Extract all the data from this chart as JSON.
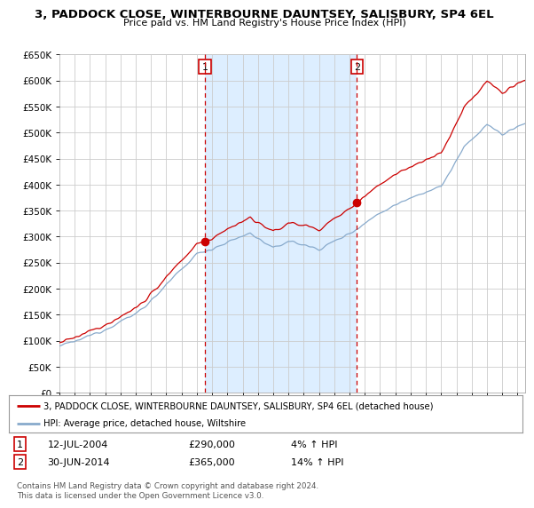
{
  "title": "3, PADDOCK CLOSE, WINTERBOURNE DAUNTSEY, SALISBURY, SP4 6EL",
  "subtitle": "Price paid vs. HM Land Registry's House Price Index (HPI)",
  "ylim": [
    0,
    650000
  ],
  "yticks": [
    0,
    50000,
    100000,
    150000,
    200000,
    250000,
    300000,
    350000,
    400000,
    450000,
    500000,
    550000,
    600000,
    650000
  ],
  "ytick_labels": [
    "£0",
    "£50K",
    "£100K",
    "£150K",
    "£200K",
    "£250K",
    "£300K",
    "£350K",
    "£400K",
    "£450K",
    "£500K",
    "£550K",
    "£600K",
    "£650K"
  ],
  "plot_bg_color": "#ffffff",
  "shade_color": "#ddeeff",
  "fig_bg_color": "#ffffff",
  "grid_color": "#cccccc",
  "sale1_year": 2004.53,
  "sale1_price": 290000,
  "sale1_label": "12-JUL-2004",
  "sale1_pct": "4%",
  "sale2_year": 2014.49,
  "sale2_price": 365000,
  "sale2_label": "30-JUN-2014",
  "sale2_pct": "14%",
  "red_line_color": "#cc0000",
  "blue_line_color": "#88aacc",
  "dashed_line_color": "#cc0000",
  "legend_line1": "3, PADDOCK CLOSE, WINTERBOURNE DAUNTSEY, SALISBURY, SP4 6EL (detached house)",
  "legend_line2": "HPI: Average price, detached house, Wiltshire",
  "footer": "Contains HM Land Registry data © Crown copyright and database right 2024.\nThis data is licensed under the Open Government Licence v3.0.",
  "xmin": 1995.0,
  "xmax": 2025.5
}
